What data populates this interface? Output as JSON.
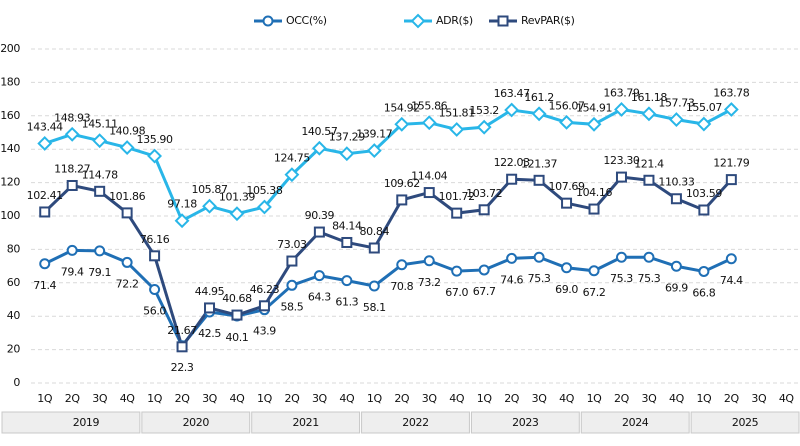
{
  "chart_data": {
    "type": "line",
    "categories": [
      "1Q",
      "2Q",
      "3Q",
      "4Q",
      "1Q",
      "2Q",
      "3Q",
      "4Q",
      "1Q",
      "2Q",
      "3Q",
      "4Q",
      "1Q",
      "2Q",
      "3Q",
      "4Q",
      "1Q",
      "2Q",
      "3Q",
      "4Q",
      "1Q",
      "2Q",
      "3Q",
      "4Q",
      "1Q",
      "2Q",
      "3Q",
      "4Q"
    ],
    "years": [
      "2019",
      "2020",
      "2021",
      "2022",
      "2023",
      "2024",
      "2025"
    ],
    "ylim": [
      0,
      200
    ],
    "yticks": [
      0,
      20,
      40,
      60,
      80,
      100,
      120,
      140,
      160,
      180,
      200
    ],
    "grid": true,
    "legend": "top",
    "series": [
      {
        "name": "OCC(%)",
        "color": "#1f6fb5",
        "marker": "circle",
        "values": [
          71.4,
          79.4,
          79.1,
          72.2,
          56.0,
          22.3,
          42.5,
          40.1,
          43.9,
          58.5,
          64.3,
          61.3,
          58.1,
          70.8,
          73.2,
          67.0,
          67.7,
          74.6,
          75.3,
          69.0,
          67.2,
          75.3,
          75.3,
          69.9,
          66.8,
          74.4,
          null,
          null
        ],
        "value_labels": [
          "71.4",
          "79.4",
          "79.1",
          "72.2",
          "56.0",
          "22.3",
          "42.5",
          "40.1",
          "43.9",
          "58.5",
          "64.3",
          "61.3",
          "58.1",
          "70.8",
          "73.2",
          "67.0",
          "67.7",
          "74.6",
          "75.3",
          "69.0",
          "67.2",
          "75.3",
          "75.3",
          "69.9",
          "66.8",
          "74.4",
          null,
          null
        ]
      },
      {
        "name": "ADR($)",
        "color": "#29b6e8",
        "marker": "diamond",
        "values": [
          143.44,
          148.93,
          145.11,
          140.98,
          135.9,
          97.18,
          105.87,
          101.39,
          105.38,
          124.75,
          140.57,
          137.29,
          139.17,
          154.92,
          155.86,
          151.81,
          153.2,
          163.47,
          161.2,
          156.07,
          154.91,
          163.79,
          161.18,
          157.73,
          155.07,
          163.78,
          null,
          null
        ],
        "value_labels": [
          "143.44",
          "148.93",
          "145.11",
          "140.98",
          "135.90",
          "97.18",
          "105.87",
          "101.39",
          "105.38",
          "124.75",
          "140.57",
          "137.29",
          "139.17",
          "154.92",
          "155.86",
          "151.81",
          "153.2",
          "163.47",
          "161.2",
          "156.07",
          "154.91",
          "163.79",
          "161.18",
          "157.73",
          "155.07",
          "163.78",
          null,
          null
        ]
      },
      {
        "name": "RevPAR($)",
        "color": "#2e4a7d",
        "marker": "square",
        "values": [
          102.41,
          118.27,
          114.78,
          101.86,
          76.16,
          21.67,
          44.95,
          40.68,
          46.23,
          73.03,
          90.39,
          84.14,
          80.84,
          109.62,
          114.04,
          101.72,
          103.72,
          122.03,
          121.37,
          107.69,
          104.16,
          123.3,
          121.4,
          110.33,
          103.59,
          121.79,
          null,
          null
        ],
        "value_labels": [
          "102.41",
          "118.27",
          "114.78",
          "101.86",
          "76.16",
          "21.67",
          "44.95",
          "40.68",
          "46.23",
          "73.03",
          "90.39",
          "84.14",
          "80.84",
          "109.62",
          "114.04",
          "101.72",
          "103.72",
          "122.03",
          "121.37",
          "107.69",
          "104.16",
          "123.30",
          "121.4",
          "110.33",
          "103.59",
          "121.79",
          null,
          null
        ]
      }
    ]
  }
}
